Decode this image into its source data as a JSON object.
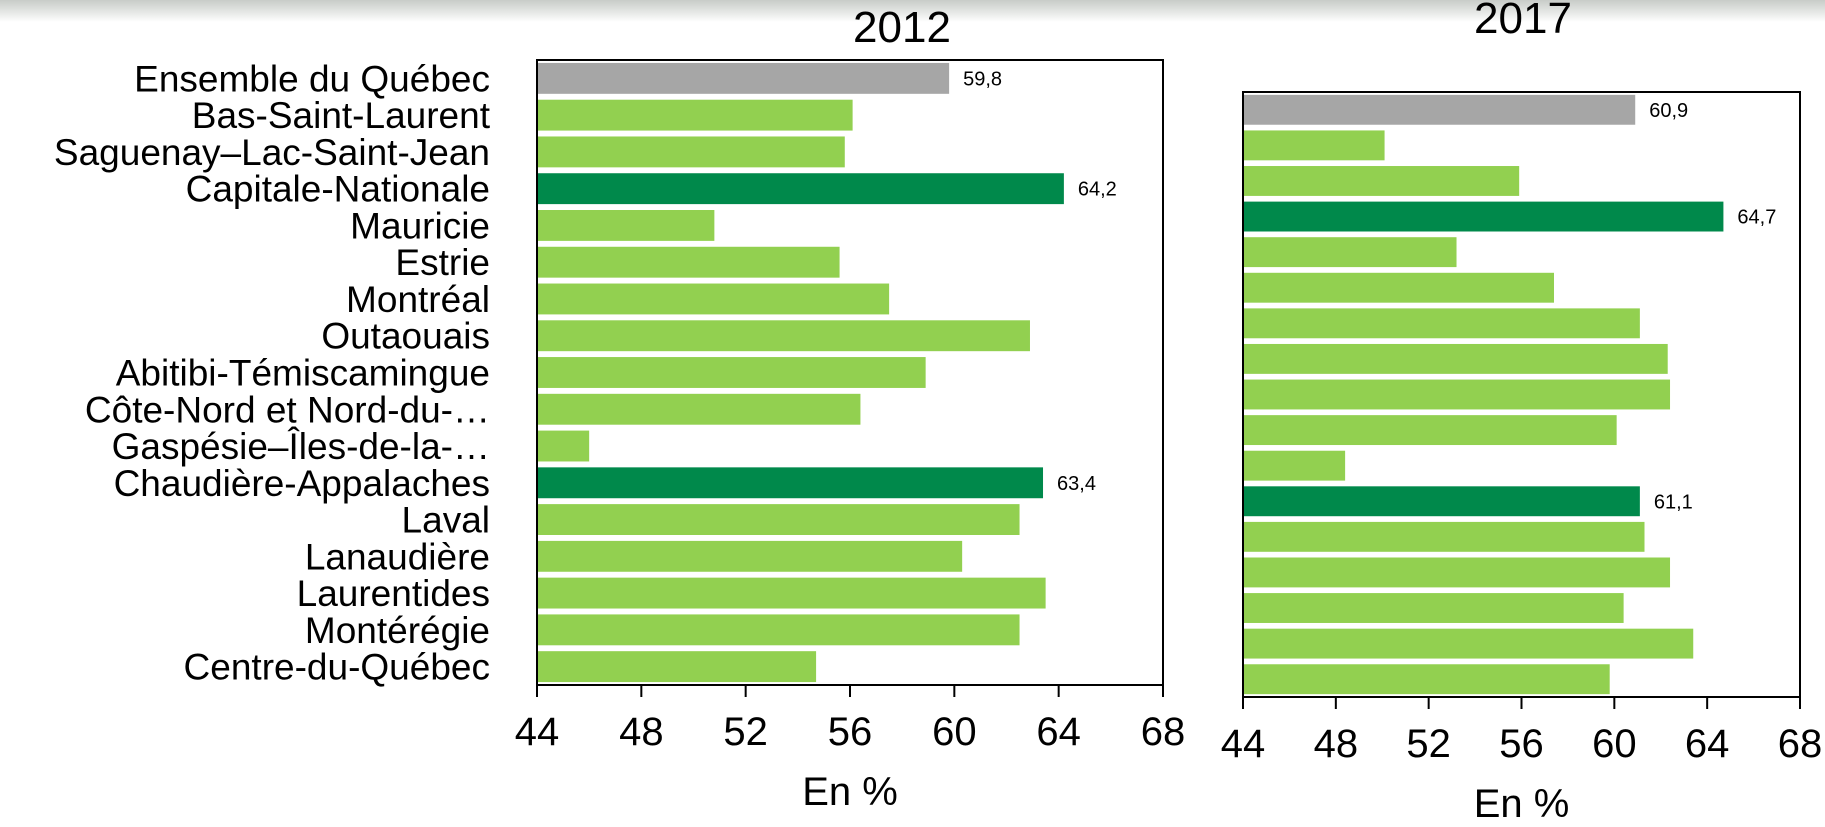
{
  "chart_data": [
    {
      "type": "bar",
      "title": "2012",
      "xlabel": "En %",
      "ylabel": "",
      "xlim": [
        44,
        68
      ],
      "xticks": [
        "44",
        "48",
        "52",
        "56",
        "60",
        "64",
        "68"
      ],
      "categories": [
        "Ensemble du Québec",
        "Bas-Saint-Laurent",
        "Saguenay–Lac-Saint-Jean",
        "Capitale-Nationale",
        "Mauricie",
        "Estrie",
        "Montréal",
        "Outaouais",
        "Abitibi-Témiscamingue",
        "Côte-Nord et Nord-du-…",
        "Gaspésie–Îles-de-la-…",
        "Chaudière-Appalaches",
        "Laval",
        "Lanaudière",
        "Laurentides",
        "Montérégie",
        "Centre-du-Québec"
      ],
      "values": [
        59.8,
        56.1,
        55.8,
        64.2,
        50.8,
        55.6,
        57.5,
        62.9,
        58.9,
        56.4,
        46.0,
        63.4,
        62.5,
        60.3,
        63.5,
        62.5,
        54.7
      ],
      "data_labels": [
        "59,8",
        "",
        "",
        "64,2",
        "",
        "",
        "",
        "",
        "",
        "",
        "",
        "63,4",
        "",
        "",
        "",
        "",
        ""
      ],
      "bar_colors": [
        "#a6a6a6",
        "#92d050",
        "#92d050",
        "#00894b",
        "#92d050",
        "#92d050",
        "#92d050",
        "#92d050",
        "#92d050",
        "#92d050",
        "#92d050",
        "#00894b",
        "#92d050",
        "#92d050",
        "#92d050",
        "#92d050",
        "#92d050"
      ],
      "grid": false,
      "orientation": "horizontal"
    },
    {
      "type": "bar",
      "title": "2017",
      "xlabel": "En %",
      "ylabel": "",
      "xlim": [
        44,
        68
      ],
      "xticks": [
        "44",
        "48",
        "52",
        "56",
        "60",
        "64",
        "68"
      ],
      "categories": [
        "Ensemble du Québec",
        "Bas-Saint-Laurent",
        "Saguenay–Lac-Saint-Jean",
        "Capitale-Nationale",
        "Mauricie",
        "Estrie",
        "Montréal",
        "Outaouais",
        "Abitibi-Témiscamingue",
        "Côte-Nord et Nord-du-…",
        "Gaspésie–Îles-de-la-…",
        "Chaudière-Appalaches",
        "Laval",
        "Lanaudière",
        "Laurentides",
        "Montérégie",
        "Centre-du-Québec"
      ],
      "values": [
        60.9,
        50.1,
        55.9,
        64.7,
        53.2,
        57.4,
        61.1,
        62.3,
        62.4,
        60.1,
        48.4,
        61.1,
        61.3,
        62.4,
        60.4,
        63.4,
        59.8
      ],
      "data_labels": [
        "60,9",
        "",
        "",
        "64,7",
        "",
        "",
        "",
        "",
        "",
        "",
        "",
        "61,1",
        "",
        "",
        "",
        "",
        ""
      ],
      "bar_colors": [
        "#a6a6a6",
        "#92d050",
        "#92d050",
        "#00894b",
        "#92d050",
        "#92d050",
        "#92d050",
        "#92d050",
        "#92d050",
        "#92d050",
        "#92d050",
        "#00894b",
        "#92d050",
        "#92d050",
        "#92d050",
        "#92d050",
        "#92d050"
      ],
      "grid": false,
      "orientation": "horizontal"
    }
  ]
}
